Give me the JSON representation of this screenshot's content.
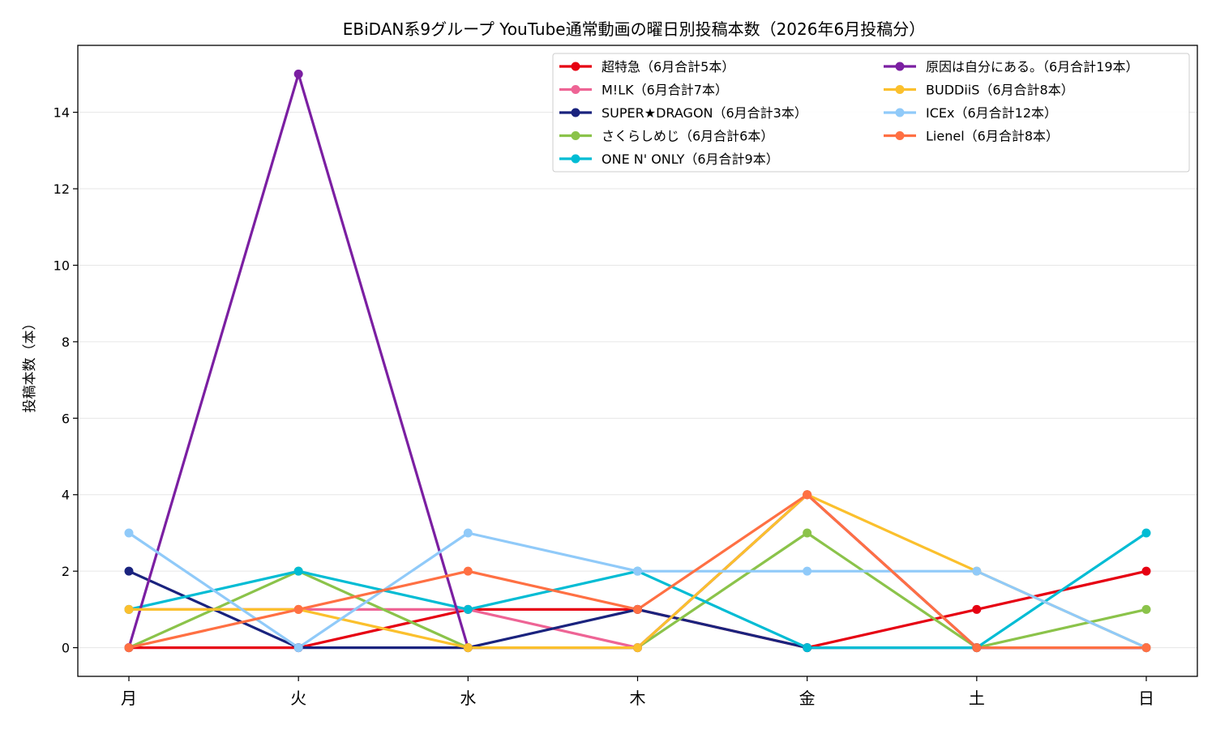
{
  "chart_data": {
    "type": "line",
    "title": "EBiDAN系9グループ YouTube通常動画の曜日別投稿本数（2026年6月投稿分）",
    "xlabel": "",
    "ylabel": "投稿本数（本）",
    "categories": [
      "月",
      "火",
      "水",
      "木",
      "金",
      "土",
      "日"
    ],
    "ylim": [
      -0.75,
      15.75
    ],
    "yticks": [
      0,
      2,
      4,
      6,
      8,
      10,
      12,
      14
    ],
    "grid": "horizontal",
    "legend_position": "top-right",
    "series": [
      {
        "name": "超特急（6月合計5本）",
        "color": "#e60012",
        "values": [
          0,
          0,
          1,
          1,
          0,
          1,
          2
        ]
      },
      {
        "name": "M!LK（6月合計7本）",
        "color": "#ee6495",
        "values": [
          1,
          1,
          1,
          0,
          4,
          0,
          0
        ]
      },
      {
        "name": "SUPER★DRAGON（6月合計3本）",
        "color": "#1a237e",
        "values": [
          2,
          0,
          0,
          1,
          0,
          0,
          0
        ]
      },
      {
        "name": "さくらしめじ（6月合計6本）",
        "color": "#8bc34a",
        "values": [
          0,
          2,
          0,
          0,
          3,
          0,
          1
        ]
      },
      {
        "name": "ONE N' ONLY（6月合計9本）",
        "color": "#00bcd4",
        "values": [
          1,
          2,
          1,
          2,
          0,
          0,
          3
        ]
      },
      {
        "name": "原因は自分にある。（6月合計19本）",
        "color": "#7b1fa2",
        "values": [
          0,
          15,
          0,
          0,
          4,
          0,
          0
        ]
      },
      {
        "name": "BUDDiiS（6月合計8本）",
        "color": "#fbc02d",
        "values": [
          1,
          1,
          0,
          0,
          4,
          2,
          0
        ]
      },
      {
        "name": "ICEx（6月合計12本）",
        "color": "#90caf9",
        "values": [
          3,
          0,
          3,
          2,
          2,
          2,
          0
        ]
      },
      {
        "name": "Lienel（6月合計8本）",
        "color": "#ff7043",
        "values": [
          0,
          1,
          2,
          1,
          4,
          0,
          0
        ]
      }
    ]
  }
}
